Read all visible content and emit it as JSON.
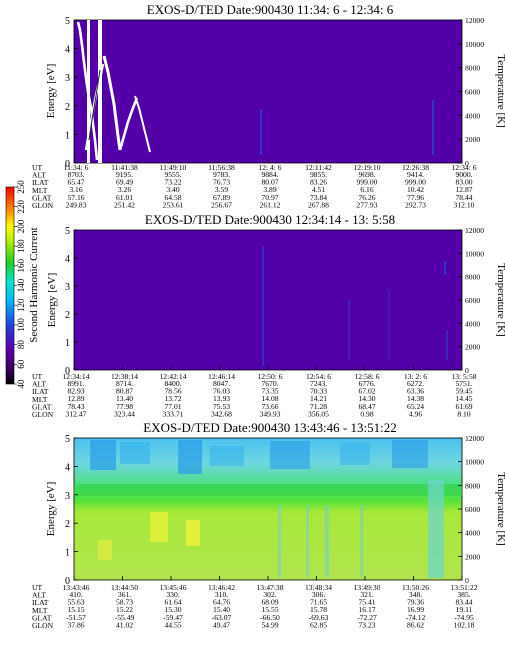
{
  "colors": {
    "background_purple": "#5200a8",
    "white_trace": "#ffffff",
    "panel3_fill": "#a4e84a"
  },
  "row_names": [
    "UT",
    "ALT",
    "ILAT",
    "MLT",
    "GLAT",
    "GLON"
  ],
  "colorbar": {
    "label": "Second Harmonic Current",
    "ticks": [
      "40",
      "60",
      "80",
      "100",
      "120",
      "140",
      "160",
      "180",
      "200",
      "220",
      "250"
    ]
  },
  "chart_data": [
    {
      "type": "heatmap",
      "title": "EXOS-D/TED   Date:900430  11:34: 6 - 12:34: 6",
      "ylabel": "Energy [eV]",
      "y2label": "Temperature [K]",
      "ylim": [
        0,
        5
      ],
      "y2lim": [
        0,
        12000
      ],
      "yticks": [
        "0",
        "1",
        "2",
        "3",
        "4",
        "5"
      ],
      "y2ticks": [
        "0",
        "2000",
        "4000",
        "6000",
        "8000",
        "10000",
        "12000"
      ],
      "x_ticks": [
        "11:34: 6",
        "11:41:38",
        "11:49:10",
        "11:56:38",
        "12: 4: 6",
        "12:11:42",
        "12:19:10",
        "12:26:38",
        "12:34: 6"
      ],
      "table": {
        "ALT": [
          "8703.",
          "9195.",
          "9555.",
          "9783.",
          "9884.",
          "9855.",
          "9698.",
          "9414.",
          "9000."
        ],
        "ILAT": [
          "65.47",
          "69.49",
          "73.22",
          "76.73",
          "80.07",
          "83.26",
          "999.00",
          "999.00",
          "83.00"
        ],
        "MLT": [
          "3.16",
          "3.26",
          "3.40",
          "3.59",
          "3.89",
          "4.51",
          "6.16",
          "10.42",
          "12.87"
        ],
        "GLAT": [
          "57.16",
          "61.01",
          "64.58",
          "67.89",
          "70.97",
          "73.84",
          "76.26",
          "77.96",
          "78.44"
        ],
        "GLON": [
          "249.83",
          "251.42",
          "253.61",
          "256.67",
          "261.12",
          "267.88",
          "277.93",
          "292.73",
          "312.10"
        ]
      }
    },
    {
      "type": "heatmap",
      "title": "EXOS-D/TED   Date:900430  12:34:14 - 13: 5:58",
      "ylabel": "Energy [eV]",
      "y2label": "Temperature [K]",
      "ylim": [
        0,
        5
      ],
      "y2lim": [
        0,
        12000
      ],
      "yticks": [
        "0",
        "1",
        "2",
        "3",
        "4",
        "5"
      ],
      "y2ticks": [
        "0",
        "2000",
        "4000",
        "6000",
        "8000",
        "10000",
        "12000"
      ],
      "x_ticks": [
        "12:34:14",
        "12:38:14",
        "12:42:14",
        "12:46:14",
        "12:50: 6",
        "12:54: 6",
        "12:58: 6",
        "13: 2: 6",
        "13: 5:58"
      ],
      "table": {
        "ALT": [
          "8991.",
          "8714.",
          "8400.",
          "8047.",
          "7670.",
          "7243.",
          "6776.",
          "6272.",
          "5751."
        ],
        "ILAT": [
          "82.93",
          "80.87",
          "78.56",
          "76.03",
          "73.35",
          "70.33",
          "67.02",
          "63.36",
          "59.45"
        ],
        "MLT": [
          "12.89",
          "13.40",
          "13.72",
          "13.93",
          "14.08",
          "14.21",
          "14.30",
          "14.38",
          "14.45"
        ],
        "GLAT": [
          "78.43",
          "77.98",
          "77.01",
          "75.53",
          "73.66",
          "71.28",
          "68.47",
          "65.24",
          "61.69"
        ],
        "GLON": [
          "312.47",
          "323.44",
          "333.71",
          "342.68",
          "349.93",
          "356.05",
          "0.98",
          "4.96",
          "8.10"
        ]
      }
    },
    {
      "type": "heatmap",
      "title": "EXOS-D/TED   Date:900430  13:43:46 - 13:51:22",
      "ylabel": "Energy [eV]",
      "y2label": "Temperature [K]",
      "ylim": [
        0,
        5
      ],
      "y2lim": [
        0,
        12000
      ],
      "yticks": [
        "0",
        "1",
        "2",
        "3",
        "4",
        "5"
      ],
      "y2ticks": [
        "0",
        "2000",
        "4000",
        "6000",
        "8000",
        "10000",
        "12000"
      ],
      "x_ticks": [
        "13:43:46",
        "13:44:50",
        "13:45:46",
        "13:46:42",
        "13:47:38",
        "13:48:34",
        "13:49:30",
        "13:50:26",
        "13:51:22"
      ],
      "table": {
        "ALT": [
          "410.",
          "361.",
          "330.",
          "310.",
          "302.",
          "306.",
          "321.",
          "348.",
          "385."
        ],
        "ILAT": [
          "55.63",
          "58.73",
          "61.64",
          "64.76",
          "68.09",
          "71.65",
          "75.41",
          "79.36",
          "83.44"
        ],
        "MLT": [
          "15.15",
          "15.22",
          "15.30",
          "15.40",
          "15.55",
          "15.78",
          "16.17",
          "16.99",
          "19.11"
        ],
        "GLAT": [
          "-51.57",
          "-55.49",
          "-59.47",
          "-63.07",
          "-66.50",
          "-69.63",
          "-72.27",
          "-74.12",
          "-74.95"
        ],
        "GLON": [
          "37.86",
          "41.02",
          "44.55",
          "49.47",
          "54.99",
          "62.85",
          "73.23",
          "86.62",
          "102.18"
        ]
      }
    }
  ]
}
